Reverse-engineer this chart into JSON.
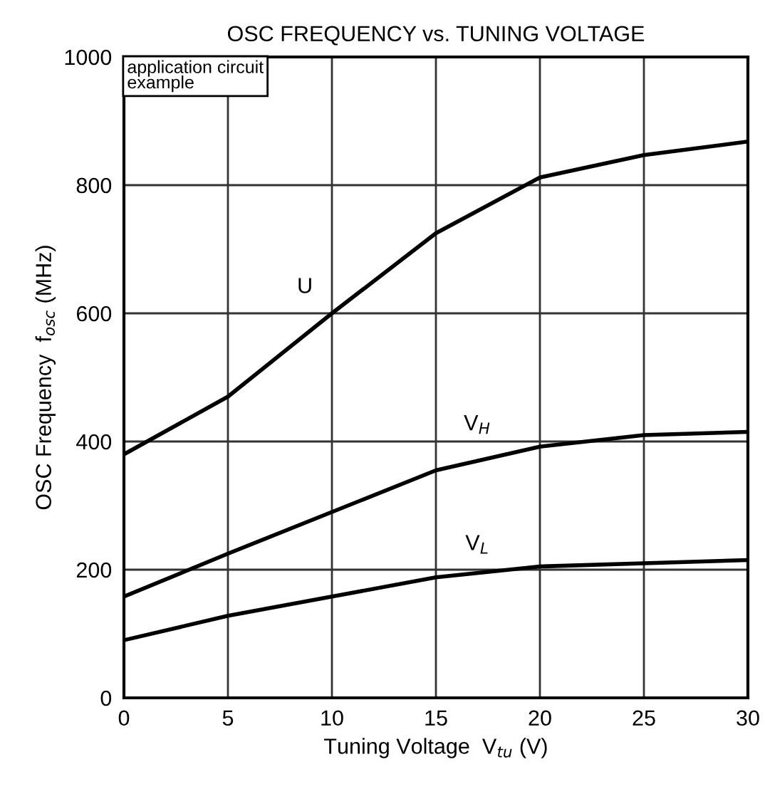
{
  "chart_data": {
    "type": "line",
    "title": "OSC FREQUENCY vs. TUNING VOLTAGE",
    "xlabel": "Tuning Voltage  V$_{tu}$ (V)",
    "ylabel": "OSC Frequency  f$_{osc}$ (MHz)",
    "x": [
      0,
      5,
      10,
      15,
      20,
      25,
      30
    ],
    "series": [
      {
        "name": "U",
        "color": "#000000",
        "values": [
          380,
          470,
          600,
          725,
          812,
          847,
          868
        ]
      },
      {
        "name": "V$_{H}$",
        "color": "#000000",
        "values": [
          158,
          225,
          290,
          355,
          392,
          410,
          415
        ]
      },
      {
        "name": "V$_{L}$",
        "color": "#000000",
        "values": [
          90,
          128,
          158,
          188,
          205,
          210,
          215
        ]
      }
    ],
    "annotations": [
      "application circuit\nexample"
    ],
    "xlim": [
      0,
      30
    ],
    "ylim": [
      0,
      1000
    ],
    "xticks": [
      0,
      5,
      10,
      15,
      20,
      25,
      30
    ],
    "yticks": [
      0,
      200,
      400,
      600,
      800,
      1000
    ],
    "grid": true,
    "legend": false,
    "marker": "none",
    "line_style": "solid"
  }
}
